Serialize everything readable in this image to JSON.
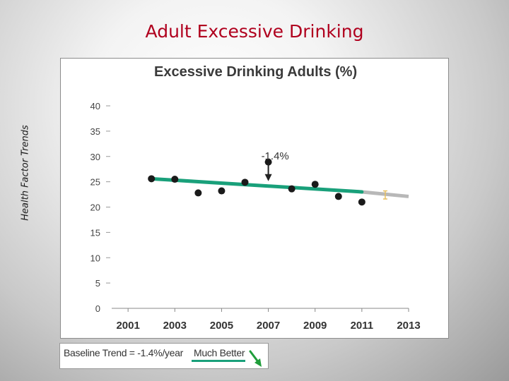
{
  "slide": {
    "title": "Adult Excessive Drinking",
    "side_label": "Health Factor Trends"
  },
  "legend": {
    "baseline_text": "Baseline Trend = -1.4%/year",
    "direction_text": "Much Better",
    "direction_icon": "down-right-arrow-icon",
    "trend_color": "#19a07a",
    "arrow_color": "#1f9d3a"
  },
  "chart_data": {
    "type": "scatter",
    "title": "Excessive Drinking Adults (%)",
    "xlabel": "",
    "ylabel": "",
    "xlim": [
      2000.3,
      2013
    ],
    "ylim": [
      0,
      40
    ],
    "x_ticks": [
      2001,
      2003,
      2005,
      2007,
      2009,
      2011,
      2013
    ],
    "y_ticks": [
      0,
      5,
      10,
      15,
      20,
      25,
      30,
      35,
      40
    ],
    "grid": false,
    "points": {
      "x": [
        2002,
        2003,
        2004,
        2005,
        2006,
        2007,
        2008,
        2009,
        2010,
        2011
      ],
      "y": [
        25.6,
        25.5,
        22.8,
        23.2,
        24.9,
        28.9,
        23.6,
        24.5,
        22.1,
        21.0
      ]
    },
    "trend_line": {
      "x": [
        2002,
        2011
      ],
      "y": [
        25.6,
        23.0
      ],
      "color": "#19a07a"
    },
    "projection_line": {
      "x": [
        2011,
        2013
      ],
      "y": [
        23.0,
        22.1
      ],
      "color": "#b8b8b8"
    },
    "error_bar": {
      "x": [
        2012
      ],
      "y": [
        22.4
      ],
      "low": [
        21.6
      ],
      "high": [
        23.2
      ],
      "color": "#e8c060"
    },
    "annotation": {
      "text": "-1.4%",
      "x": 2007,
      "y": 24.0
    }
  }
}
